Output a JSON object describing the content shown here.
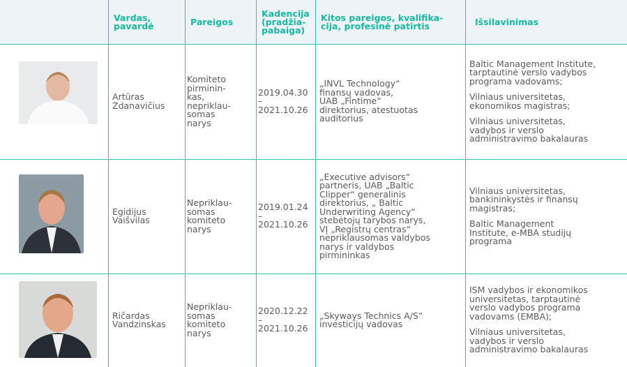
{
  "table": {
    "header": [
      [
        "Vardas,",
        "pavardė"
      ],
      [
        "Pareigos"
      ],
      [
        "Kadencija",
        "(pradžia-",
        "pabaiga)"
      ],
      [
        "Kitos pareigos, kvalifika-",
        "cija, profesinė patirtis"
      ],
      [
        "Išsilavinimas"
      ]
    ],
    "rows": [
      {
        "name": [
          "Artūras",
          "Zdanavičius"
        ],
        "position": [
          "Komiteto",
          "pirminin-",
          "kas,",
          "nepriklau-",
          "somas",
          "narys"
        ],
        "term": [
          "2019.04.30",
          "–",
          "2021.10.26"
        ],
        "other": [
          "„INVL Technology“",
          "finansų vadovas,",
          "UAB „Fintime“",
          "direktorius, atestuotas",
          "auditorius"
        ],
        "education": [
          [
            "Baltic Management Institute,",
            "tarptautinė verslo vadybos",
            "programa vadovams;"
          ],
          [
            "Vilniaus universitetas,",
            "ekonomikos magistras;"
          ],
          [
            "Vilniaus universitetas,",
            "vadybos ir verslo",
            "administravimo bakalauras"
          ]
        ]
      },
      {
        "name": [
          "Egidijus",
          "Vaišvilas"
        ],
        "position": [
          "Nepriklau-",
          "somas",
          "komiteto",
          "narys"
        ],
        "term": [
          "2019.01.24",
          "–",
          "2021.10.26"
        ],
        "other": [
          "„Executive advisors“",
          "partneris, UAB „Baltic",
          "Clipper“ generalinis",
          "direktorius, „ Baltic",
          "Underwriting Agency“",
          "stebėtojų tarybos narys,",
          "VĮ „Registrų centras“",
          "nepriklausomas valdybos",
          "narys ir valdybos",
          "pirmininkas"
        ],
        "education": [
          [
            "Vilniaus universitetas,",
            "bankininkystės ir finansų",
            "magistras;"
          ],
          [
            "Baltic Management",
            "Institute, e-MBA studijų",
            "programa"
          ]
        ]
      },
      {
        "name": [
          "Ričardas",
          "Vandzinskas"
        ],
        "position": [
          "Nepriklau-",
          "somas",
          "komiteto",
          "narys"
        ],
        "term": [
          "2020.12.22",
          "–",
          "2021.10.26"
        ],
        "other": [
          "„Skyways Technics A/S“",
          "investicijų vadovas"
        ],
        "education": [
          [
            "ISM vadybos ir ekonomikos",
            "universitetas, tarptautinė",
            "verslo vadybos programa",
            "vadovams (EMBA);"
          ],
          [
            "Vilniaus universitetas,",
            "vadybos ir verslo",
            "administravimo bakalauras"
          ]
        ]
      }
    ]
  }
}
